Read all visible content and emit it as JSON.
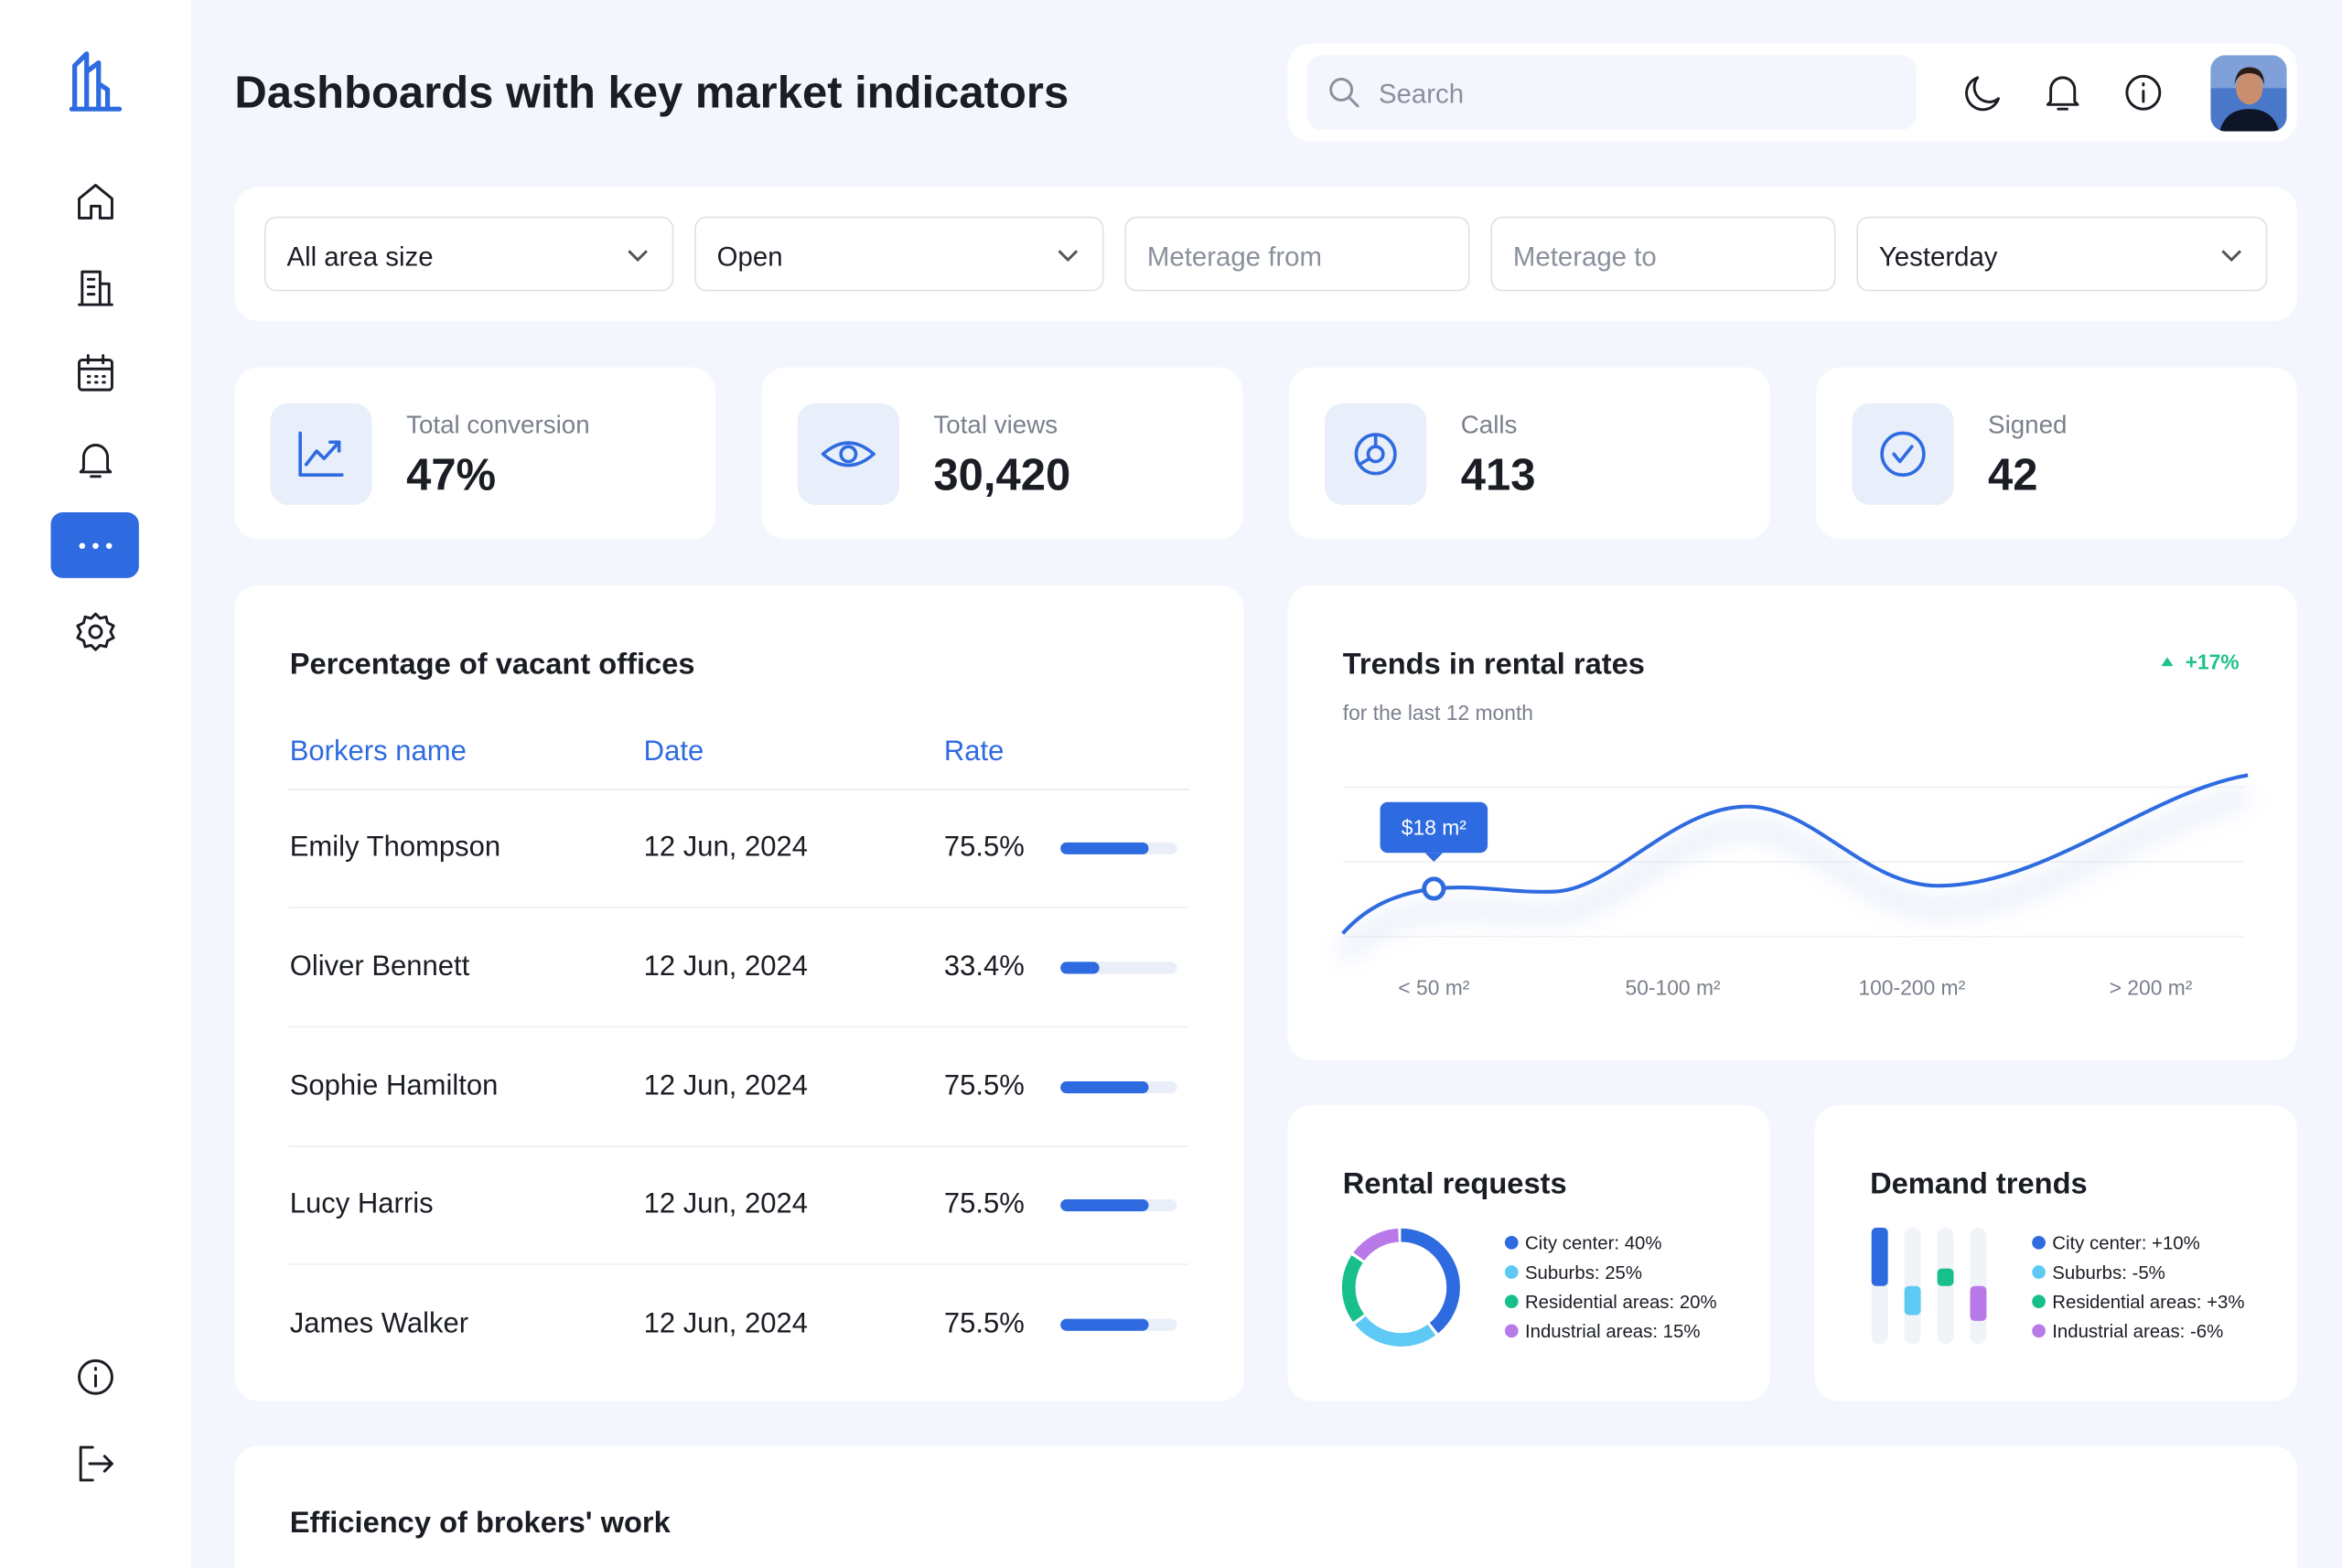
{
  "header": {
    "title": "Dashboards with key market indicators",
    "search_placeholder": "Search"
  },
  "filters": [
    "All area size",
    "Open",
    "Meterage from",
    "Meterage to",
    "Yesterday"
  ],
  "stats": [
    {
      "label": "Total conversion",
      "value": "47%"
    },
    {
      "label": "Total views",
      "value": "30,420"
    },
    {
      "label": "Calls",
      "value": "413"
    },
    {
      "label": "Signed",
      "value": "42"
    }
  ],
  "vacant_offices": {
    "title": "Percentage of vacant offices",
    "columns": [
      "Borkers name",
      "Date",
      "Rate"
    ],
    "rows": [
      [
        "Emily Thompson",
        "12 Jun, 2024",
        "75.5%"
      ],
      [
        "Oliver Bennett",
        "12 Jun, 2024",
        "33.4%"
      ],
      [
        "Sophie Hamilton",
        "12 Jun, 2024",
        "75.5%"
      ],
      [
        "Lucy Harris",
        "12 Jun, 2024",
        "75.5%"
      ],
      [
        "James Walker",
        "12 Jun, 2024",
        "75.5%"
      ]
    ]
  },
  "rental_trends": {
    "title": "Trends in rental rates",
    "subtitle": "for the last 12 month",
    "change": "+17%",
    "tooltip": "$18 m²",
    "categories": [
      "< 50 m²",
      "50-100 m²",
      "100-200 m²",
      "> 200 m²"
    ]
  },
  "rental_requests": {
    "title": "Rental requests",
    "items": [
      {
        "label": "City center: 40%",
        "value": 40,
        "color": "#2f6be0"
      },
      {
        "label": "Suburbs: 25%",
        "value": 25,
        "color": "#5ec9f5"
      },
      {
        "label": "Residential areas: 20%",
        "value": 20,
        "color": "#17c08b"
      },
      {
        "label": "Industrial areas: 15%",
        "value": 15,
        "color": "#b87ae8"
      }
    ]
  },
  "demand_trends": {
    "title": "Demand trends",
    "items": [
      {
        "label": "City center: +10%",
        "value": 10,
        "color": "#2f6be0"
      },
      {
        "label": "Suburbs: -5%",
        "value": -5,
        "color": "#5ec9f5"
      },
      {
        "label": "Residential areas: +3%",
        "value": 3,
        "color": "#17c08b"
      },
      {
        "label": "Industrial areas: -6%",
        "value": -6,
        "color": "#b87ae8"
      }
    ]
  },
  "efficiency": {
    "title": "Efficiency of brokers' work"
  }
}
